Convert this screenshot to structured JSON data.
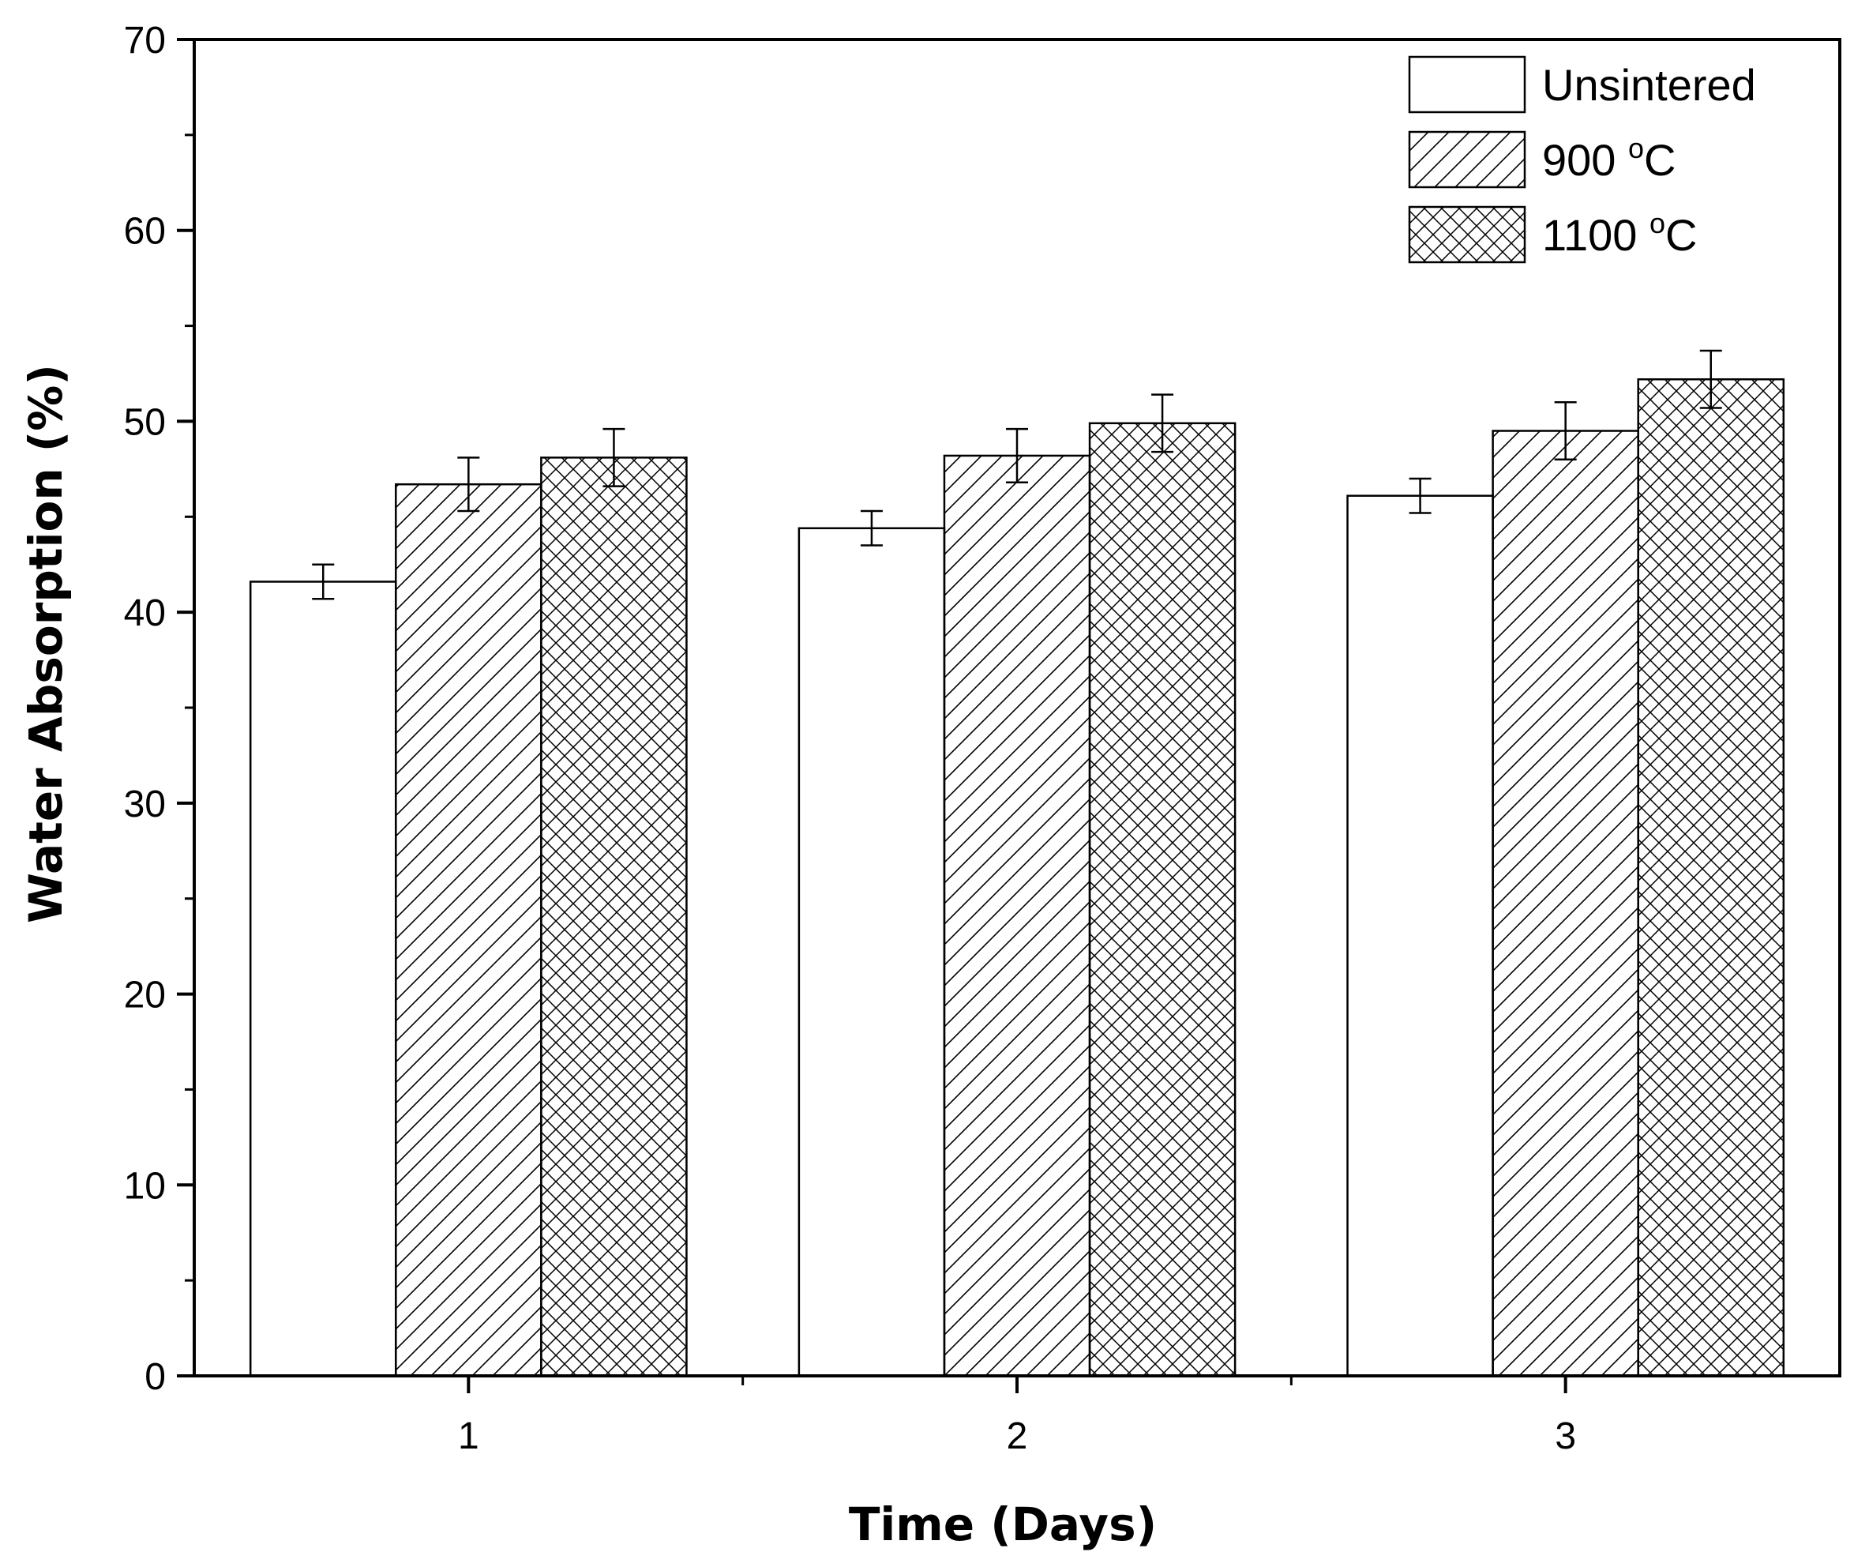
{
  "chart_data": {
    "type": "bar",
    "title": "",
    "xlabel": "Time (Days)",
    "ylabel": "Water Absorption (%)",
    "categories": [
      "1",
      "2",
      "3"
    ],
    "ylim": [
      0,
      70
    ],
    "yticks": [
      0,
      10,
      20,
      30,
      40,
      50,
      60,
      70
    ],
    "grid": false,
    "legend_position": "top-right",
    "series": [
      {
        "name": "Unsintered",
        "name_main": "Unsintered",
        "name_sup": "",
        "name_tail": "",
        "pattern": "none",
        "values": [
          41.6,
          44.4,
          46.1
        ],
        "errors": [
          0.9,
          0.9,
          0.9
        ]
      },
      {
        "name": "900 °C",
        "name_main": "900 ",
        "name_sup": "o",
        "name_tail": "C",
        "pattern": "diagonal",
        "values": [
          46.7,
          48.2,
          49.5
        ],
        "errors": [
          1.4,
          1.4,
          1.5
        ]
      },
      {
        "name": "1100 °C",
        "name_main": "1100 ",
        "name_sup": "o",
        "name_tail": "C",
        "pattern": "crosshatch",
        "values": [
          48.1,
          49.9,
          52.2
        ],
        "errors": [
          1.5,
          1.5,
          1.5
        ]
      }
    ]
  }
}
